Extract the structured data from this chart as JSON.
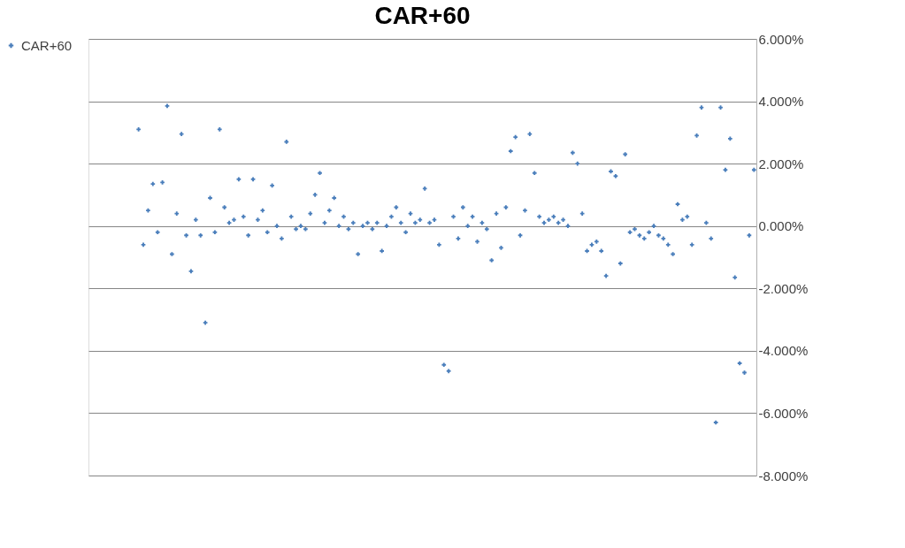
{
  "chart_data": {
    "type": "scatter",
    "title": "CAR+60",
    "categories": [
      null,
      null,
      null,
      null,
      null,
      null,
      null,
      null,
      null,
      null,
      null,
      null,
      null,
      null,
      null,
      null,
      null,
      null,
      null,
      null,
      null,
      null,
      null,
      null,
      null,
      null,
      null,
      null,
      null,
      null,
      null,
      null,
      null,
      null,
      null,
      null,
      null,
      null,
      null,
      null,
      null,
      null,
      null,
      null,
      null,
      null,
      null,
      null,
      null,
      null,
      null,
      null,
      null,
      null,
      null,
      null,
      null,
      null,
      null,
      null,
      null,
      null,
      null,
      null,
      null,
      null,
      null,
      null,
      null,
      null,
      null,
      null,
      null,
      null,
      null,
      null,
      null,
      null,
      null,
      null,
      null,
      null,
      null,
      null,
      null,
      null,
      null,
      null,
      null,
      null,
      null,
      null,
      null,
      null,
      null,
      null,
      null,
      null,
      null,
      null,
      null,
      null,
      null,
      null,
      null,
      null,
      null,
      null,
      null,
      null,
      null,
      null,
      null,
      null,
      null,
      null,
      null,
      null,
      null,
      null,
      null,
      null,
      null,
      null,
      null,
      null,
      null,
      null,
      null,
      null,
      null,
      null,
      null,
      null,
      null,
      null,
      null,
      null,
      null,
      null
    ],
    "series": [
      {
        "name": "CAR+60",
        "color": "#4a7ebb",
        "values": [
          null,
          null,
          null,
          null,
          null,
          null,
          null,
          null,
          null,
          null,
          3.1,
          -0.6,
          0.5,
          1.35,
          -0.2,
          1.4,
          3.85,
          -0.9,
          0.4,
          2.95,
          -0.3,
          -1.45,
          0.2,
          -0.3,
          -3.1,
          0.9,
          -0.2,
          3.1,
          0.6,
          0.1,
          0.2,
          1.5,
          0.3,
          -0.3,
          1.5,
          0.2,
          0.5,
          -0.2,
          1.3,
          0.0,
          -0.4,
          2.7,
          0.3,
          -0.1,
          0.0,
          -0.1,
          0.4,
          1.0,
          1.7,
          0.1,
          0.5,
          0.9,
          0.0,
          0.3,
          -0.1,
          0.1,
          -0.9,
          0.0,
          0.1,
          -0.1,
          0.1,
          -0.8,
          0.0,
          0.3,
          0.6,
          0.1,
          -0.2,
          0.4,
          0.1,
          0.2,
          1.2,
          0.1,
          0.2,
          -0.6,
          -4.45,
          -4.65,
          0.3,
          -0.4,
          0.6,
          0.0,
          0.3,
          -0.5,
          0.1,
          -0.1,
          -1.1,
          0.4,
          -0.7,
          0.6,
          2.4,
          2.85,
          -0.3,
          0.5,
          2.95,
          1.7,
          0.3,
          0.1,
          0.2,
          0.3,
          0.1,
          0.2,
          0.0,
          2.35,
          2.0,
          0.4,
          -0.8,
          -0.6,
          -0.5,
          -0.8,
          -1.6,
          1.75,
          1.6,
          -1.2,
          2.3,
          -0.2,
          -0.1,
          -0.3,
          -0.4,
          -0.2,
          0.0,
          -0.3,
          -0.4,
          -0.6,
          -0.9,
          0.7,
          0.2,
          0.3,
          -0.6,
          2.9,
          3.8,
          0.1,
          -0.4,
          -6.3,
          3.8,
          1.8,
          2.8,
          -1.65,
          -4.4,
          -4.7,
          -0.3,
          1.8
        ]
      }
    ],
    "ylim": [
      -8,
      6
    ],
    "yticks": [
      {
        "value": -8,
        "label": "-8.000%"
      },
      {
        "value": -6,
        "label": "-6.000%"
      },
      {
        "value": -4,
        "label": "-4.000%"
      },
      {
        "value": -2,
        "label": "-2.000%"
      },
      {
        "value": 0,
        "label": "0.000%"
      },
      {
        "value": 2,
        "label": "2.000%"
      },
      {
        "value": 4,
        "label": "4.000%"
      },
      {
        "value": 6,
        "label": "6.000%"
      }
    ],
    "grid": "y",
    "legend": "left",
    "marker": "cross",
    "tick_labels": "y"
  }
}
